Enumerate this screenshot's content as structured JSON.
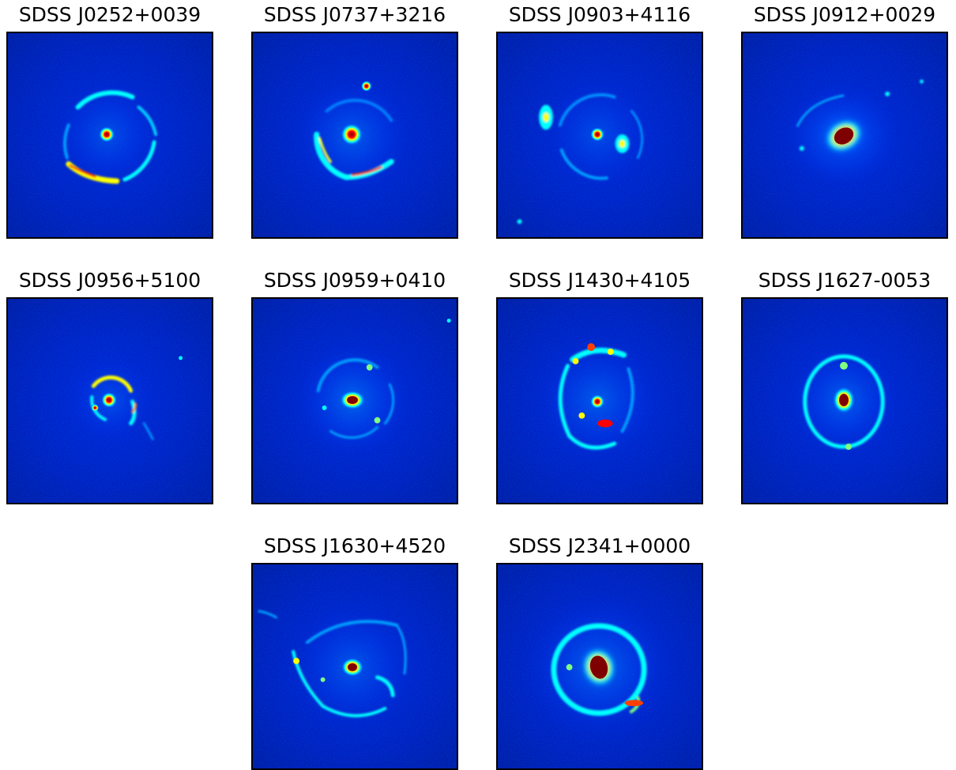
{
  "figure": {
    "colormap": [
      "#00007f",
      "#0000ff",
      "#00a0ff",
      "#00ffff",
      "#7fff7f",
      "#ffff00",
      "#ff8000",
      "#ff0000",
      "#7f0000"
    ],
    "panels": [
      {
        "title": "SDSS J0252+0039"
      },
      {
        "title": "SDSS J0737+3216"
      },
      {
        "title": "SDSS J0903+4116"
      },
      {
        "title": "SDSS J0912+0029"
      },
      {
        "title": "SDSS J0956+5100"
      },
      {
        "title": "SDSS J0959+0410"
      },
      {
        "title": "SDSS J1430+4105"
      },
      {
        "title": "SDSS J1627-0053"
      },
      {
        "title": "SDSS J1630+4520"
      },
      {
        "title": "SDSS J2341+0000"
      }
    ]
  }
}
